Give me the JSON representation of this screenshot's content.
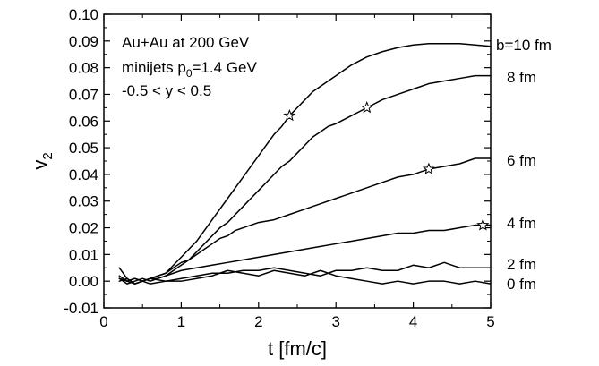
{
  "chart_data": {
    "type": "line",
    "title": "",
    "xlabel": "t [fm/c]",
    "ylabel": {
      "main": "v",
      "sub": "2"
    },
    "xlim": [
      0,
      5
    ],
    "ylim": [
      -0.01,
      0.1
    ],
    "x_ticks": [
      0,
      1,
      2,
      3,
      4,
      5
    ],
    "x_tick_labels": [
      "0",
      "1",
      "2",
      "3",
      "4",
      "5"
    ],
    "y_ticks": [
      -0.01,
      0.0,
      0.01,
      0.02,
      0.03,
      0.04,
      0.05,
      0.06,
      0.07,
      0.08,
      0.09,
      0.1
    ],
    "y_tick_labels": [
      "-0.01",
      "0.00",
      "0.01",
      "0.02",
      "0.03",
      "0.04",
      "0.05",
      "0.06",
      "0.07",
      "0.08",
      "0.09",
      "0.10"
    ],
    "grid": false,
    "legend": "none",
    "annotations": [
      {
        "text": "Au+Au at 200 GeV"
      },
      {
        "text_parts": [
          "minijets p",
          "0",
          "=1.4 GeV"
        ]
      },
      {
        "text": "-0.5 < y < 0.5"
      }
    ],
    "series": [
      {
        "name": "b=10 fm",
        "x": [
          0.2,
          0.3,
          0.4,
          0.5,
          0.6,
          0.7,
          0.8,
          0.9,
          1.0,
          1.1,
          1.2,
          1.3,
          1.4,
          1.5,
          1.6,
          1.7,
          1.8,
          1.9,
          2.0,
          2.1,
          2.2,
          2.3,
          2.4,
          2.5,
          2.6,
          2.7,
          2.8,
          2.9,
          3.0,
          3.2,
          3.4,
          3.6,
          3.8,
          4.0,
          4.2,
          4.4,
          4.6,
          4.8,
          5.0
        ],
        "y": [
          0.001,
          0.0,
          -0.001,
          0.0,
          0.001,
          0.002,
          0.003,
          0.006,
          0.009,
          0.012,
          0.015,
          0.019,
          0.023,
          0.027,
          0.031,
          0.035,
          0.039,
          0.043,
          0.047,
          0.051,
          0.055,
          0.058,
          0.062,
          0.065,
          0.068,
          0.071,
          0.073,
          0.075,
          0.077,
          0.081,
          0.084,
          0.086,
          0.0875,
          0.0885,
          0.089,
          0.089,
          0.089,
          0.0885,
          0.088
        ],
        "markers": [
          {
            "x": 2.4,
            "y": 0.062
          }
        ]
      },
      {
        "name": "8 fm",
        "x": [
          0.2,
          0.3,
          0.4,
          0.5,
          0.6,
          0.7,
          0.8,
          0.9,
          1.0,
          1.1,
          1.2,
          1.3,
          1.4,
          1.5,
          1.6,
          1.7,
          1.8,
          1.9,
          2.0,
          2.1,
          2.2,
          2.3,
          2.4,
          2.5,
          2.6,
          2.7,
          2.8,
          2.9,
          3.0,
          3.2,
          3.4,
          3.6,
          3.8,
          4.0,
          4.2,
          4.4,
          4.6,
          4.8,
          5.0
        ],
        "y": [
          0.001,
          0.0,
          0.001,
          0.0,
          0.001,
          0.001,
          0.002,
          0.004,
          0.006,
          0.008,
          0.011,
          0.014,
          0.017,
          0.02,
          0.022,
          0.025,
          0.028,
          0.031,
          0.034,
          0.037,
          0.04,
          0.043,
          0.045,
          0.048,
          0.051,
          0.054,
          0.056,
          0.058,
          0.059,
          0.062,
          0.065,
          0.068,
          0.07,
          0.072,
          0.074,
          0.075,
          0.076,
          0.077,
          0.077
        ],
        "markers": [
          {
            "x": 3.4,
            "y": 0.065
          }
        ]
      },
      {
        "name": "6 fm",
        "x": [
          0.2,
          0.3,
          0.4,
          0.5,
          0.6,
          0.7,
          0.8,
          0.9,
          1.0,
          1.1,
          1.2,
          1.3,
          1.4,
          1.5,
          1.6,
          1.7,
          1.8,
          1.9,
          2.0,
          2.2,
          2.4,
          2.6,
          2.8,
          3.0,
          3.2,
          3.4,
          3.6,
          3.8,
          4.0,
          4.2,
          4.4,
          4.6,
          4.8,
          5.0
        ],
        "y": [
          0.002,
          0.0,
          0.001,
          0.0,
          0.001,
          0.002,
          0.003,
          0.005,
          0.007,
          0.008,
          0.01,
          0.012,
          0.014,
          0.016,
          0.017,
          0.019,
          0.02,
          0.021,
          0.022,
          0.023,
          0.025,
          0.027,
          0.029,
          0.031,
          0.033,
          0.035,
          0.037,
          0.039,
          0.04,
          0.042,
          0.043,
          0.044,
          0.046,
          0.046
        ],
        "markers": [
          {
            "x": 4.2,
            "y": 0.042
          }
        ]
      },
      {
        "name": "4 fm",
        "x": [
          0.2,
          0.3,
          0.4,
          0.5,
          0.6,
          0.7,
          0.8,
          0.9,
          1.0,
          1.2,
          1.4,
          1.6,
          1.8,
          2.0,
          2.2,
          2.4,
          2.6,
          2.8,
          3.0,
          3.2,
          3.4,
          3.6,
          3.8,
          4.0,
          4.2,
          4.4,
          4.6,
          4.8,
          5.0
        ],
        "y": [
          0.001,
          -0.001,
          0.0,
          0.001,
          0.0,
          0.001,
          0.002,
          0.003,
          0.004,
          0.005,
          0.006,
          0.007,
          0.008,
          0.009,
          0.01,
          0.011,
          0.012,
          0.013,
          0.014,
          0.015,
          0.016,
          0.017,
          0.018,
          0.018,
          0.019,
          0.019,
          0.02,
          0.021,
          0.021
        ],
        "markers": [
          {
            "x": 4.9,
            "y": 0.021
          }
        ]
      },
      {
        "name": "2 fm",
        "x": [
          0.2,
          0.3,
          0.4,
          0.5,
          0.6,
          0.8,
          1.0,
          1.2,
          1.4,
          1.6,
          1.8,
          2.0,
          2.2,
          2.4,
          2.6,
          2.8,
          3.0,
          3.2,
          3.4,
          3.6,
          3.8,
          4.0,
          4.2,
          4.4,
          4.6,
          4.8,
          5.0
        ],
        "y": [
          0.005,
          0.001,
          -0.001,
          0.0,
          0.001,
          0.0,
          0.001,
          0.002,
          0.003,
          0.003,
          0.004,
          0.004,
          0.005,
          0.004,
          0.003,
          0.002,
          0.004,
          0.004,
          0.005,
          0.004,
          0.004,
          0.006,
          0.005,
          0.007,
          0.005,
          0.005,
          0.005
        ],
        "markers": []
      },
      {
        "name": "0 fm",
        "x": [
          0.2,
          0.3,
          0.4,
          0.5,
          0.6,
          0.8,
          1.0,
          1.2,
          1.4,
          1.6,
          1.8,
          2.0,
          2.2,
          2.4,
          2.6,
          2.8,
          3.0,
          3.2,
          3.4,
          3.6,
          3.8,
          4.0,
          4.2,
          4.4,
          4.6,
          4.8,
          5.0
        ],
        "y": [
          0.0,
          0.001,
          -0.001,
          0.0,
          -0.001,
          0.0,
          0.0,
          0.001,
          0.002,
          0.004,
          0.003,
          0.002,
          0.004,
          0.003,
          0.002,
          0.004,
          0.002,
          0.001,
          0.0,
          -0.001,
          0.0,
          -0.001,
          0.0,
          0.0,
          -0.001,
          0.0,
          -0.001
        ],
        "markers": []
      }
    ]
  }
}
